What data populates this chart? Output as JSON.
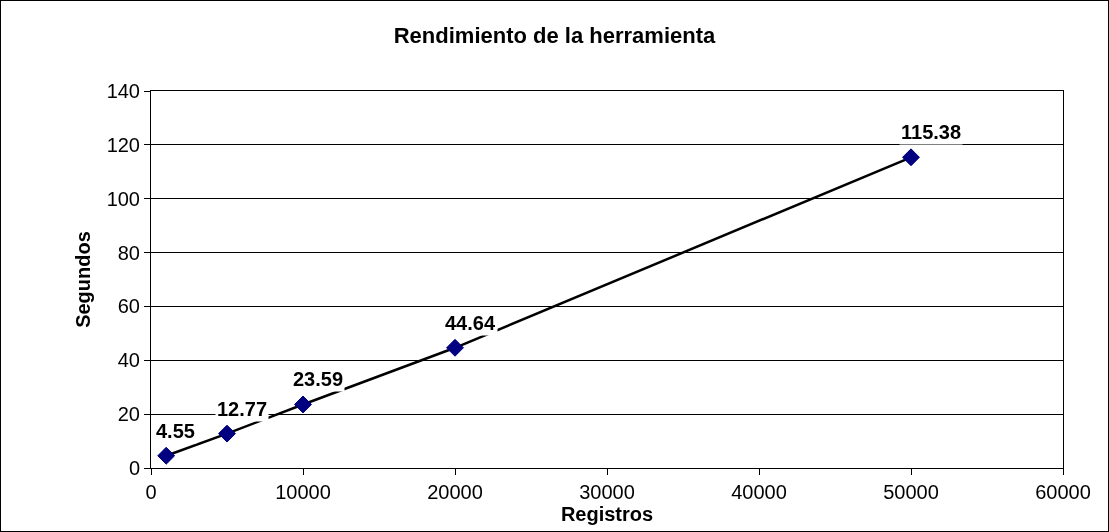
{
  "chart_data": {
    "type": "line",
    "title": "Rendimiento de la herramienta",
    "xlabel": "Registros",
    "ylabel": "Segundos",
    "x": [
      1000,
      5000,
      10000,
      20000,
      50000
    ],
    "series": [
      {
        "color": "#000080",
        "values": [
          4.55,
          12.77,
          23.59,
          44.64,
          115.38
        ]
      }
    ],
    "xlim": [
      0,
      60000
    ],
    "xticks": [
      0,
      10000,
      20000,
      30000,
      40000,
      50000,
      60000
    ],
    "ylim": [
      0,
      140
    ],
    "yticks": [
      0,
      20,
      40,
      60,
      80,
      100,
      120,
      140
    ],
    "grid": "y",
    "marker": "diamond",
    "line_style": "solid",
    "data_labels": true
  }
}
